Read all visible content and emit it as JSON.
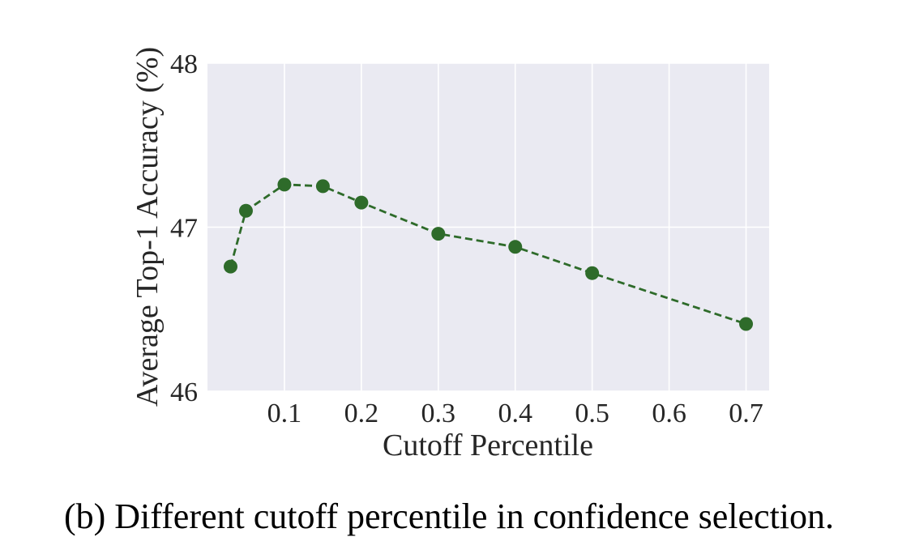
{
  "caption": "(b) Different cutoff percentile in confidence selection.",
  "chart_data": {
    "type": "line",
    "title": "",
    "xlabel": "Cutoff Percentile",
    "ylabel": "Average Top-1 Accuracy (%)",
    "xlim": [
      0.0,
      0.73
    ],
    "ylim": [
      46,
      48
    ],
    "xticks": [
      0.1,
      0.2,
      0.3,
      0.4,
      0.5,
      0.6,
      0.7
    ],
    "xtick_labels": [
      "0.1",
      "0.2",
      "0.3",
      "0.4",
      "0.5",
      "0.6",
      "0.7"
    ],
    "yticks": [
      46,
      47,
      48
    ],
    "ytick_labels": [
      "46",
      "47",
      "48"
    ],
    "grid": true,
    "line_style": "dashed",
    "marker": "circle",
    "colors": {
      "series": "#2e6b2a",
      "plot_background": "#eaeaf2",
      "grid": "#ffffff"
    },
    "series": [
      {
        "x": [
          0.03,
          0.05,
          0.1,
          0.15,
          0.2,
          0.3,
          0.4,
          0.5,
          0.7
        ],
        "values": [
          46.76,
          47.1,
          47.26,
          47.25,
          47.15,
          46.96,
          46.88,
          46.72,
          46.41
        ]
      }
    ]
  }
}
